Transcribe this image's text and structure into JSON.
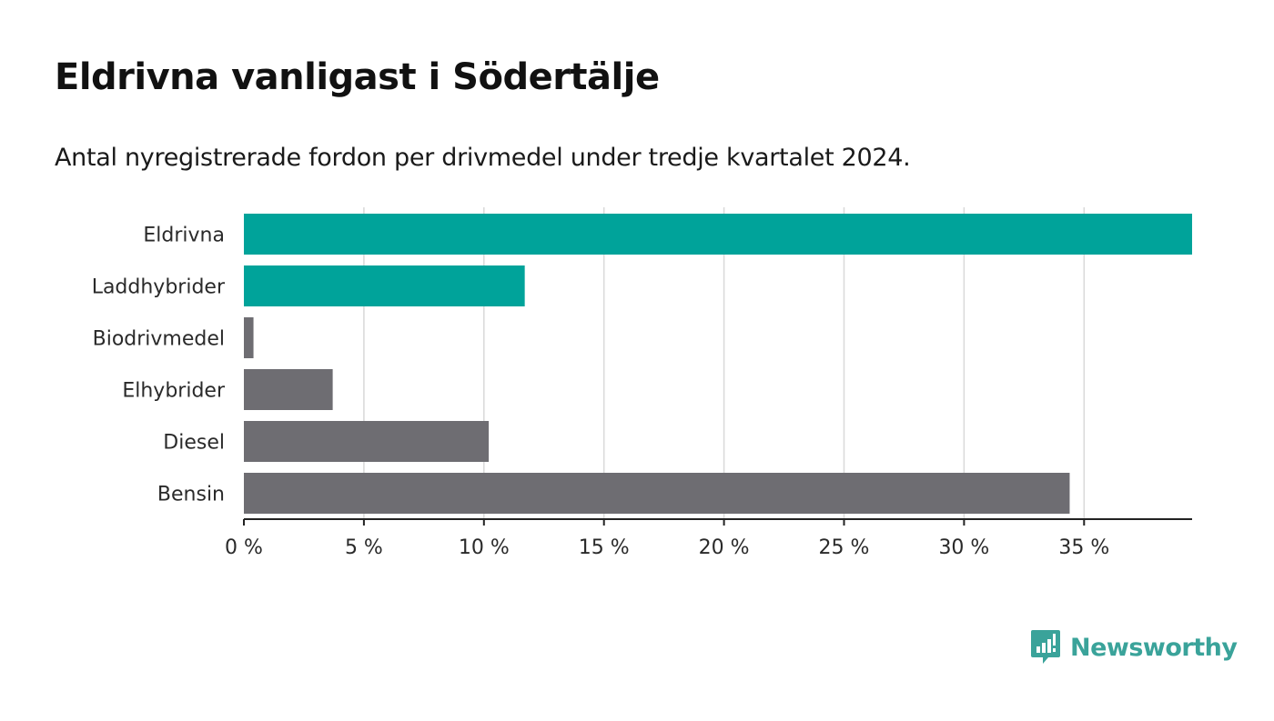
{
  "title": "Eldrivna vanligast i Södertälje",
  "subtitle": "Antal nyregistrerade fordon per drivmedel under tredje kvartalet 2024.",
  "brand": {
    "name": "Newsworthy",
    "color": "#3aa39a"
  },
  "colors": {
    "highlight": "#00a39a",
    "default": "#6e6d72",
    "grid": "#d9d9d9",
    "axis": "#222222"
  },
  "chart_data": {
    "type": "bar",
    "orientation": "horizontal",
    "title": "Eldrivna vanligast i Södertälje",
    "subtitle": "Antal nyregistrerade fordon per drivmedel under tredje kvartalet 2024.",
    "categories": [
      "Eldrivna",
      "Laddhybrider",
      "Biodrivmedel",
      "Elhybrider",
      "Diesel",
      "Bensin"
    ],
    "values": [
      39.5,
      11.7,
      0.4,
      3.7,
      10.2,
      34.4
    ],
    "highlighted": [
      "Eldrivna",
      "Laddhybrider"
    ],
    "xlabel": "",
    "ylabel": "",
    "xlim": [
      0,
      39.5
    ],
    "xticks": [
      0,
      5,
      10,
      15,
      20,
      25,
      30,
      35
    ],
    "xtick_labels": [
      "0 %",
      "5 %",
      "10 %",
      "15 %",
      "20 %",
      "25 %",
      "30 %",
      "35 %"
    ],
    "grid": true,
    "legend": "none"
  }
}
